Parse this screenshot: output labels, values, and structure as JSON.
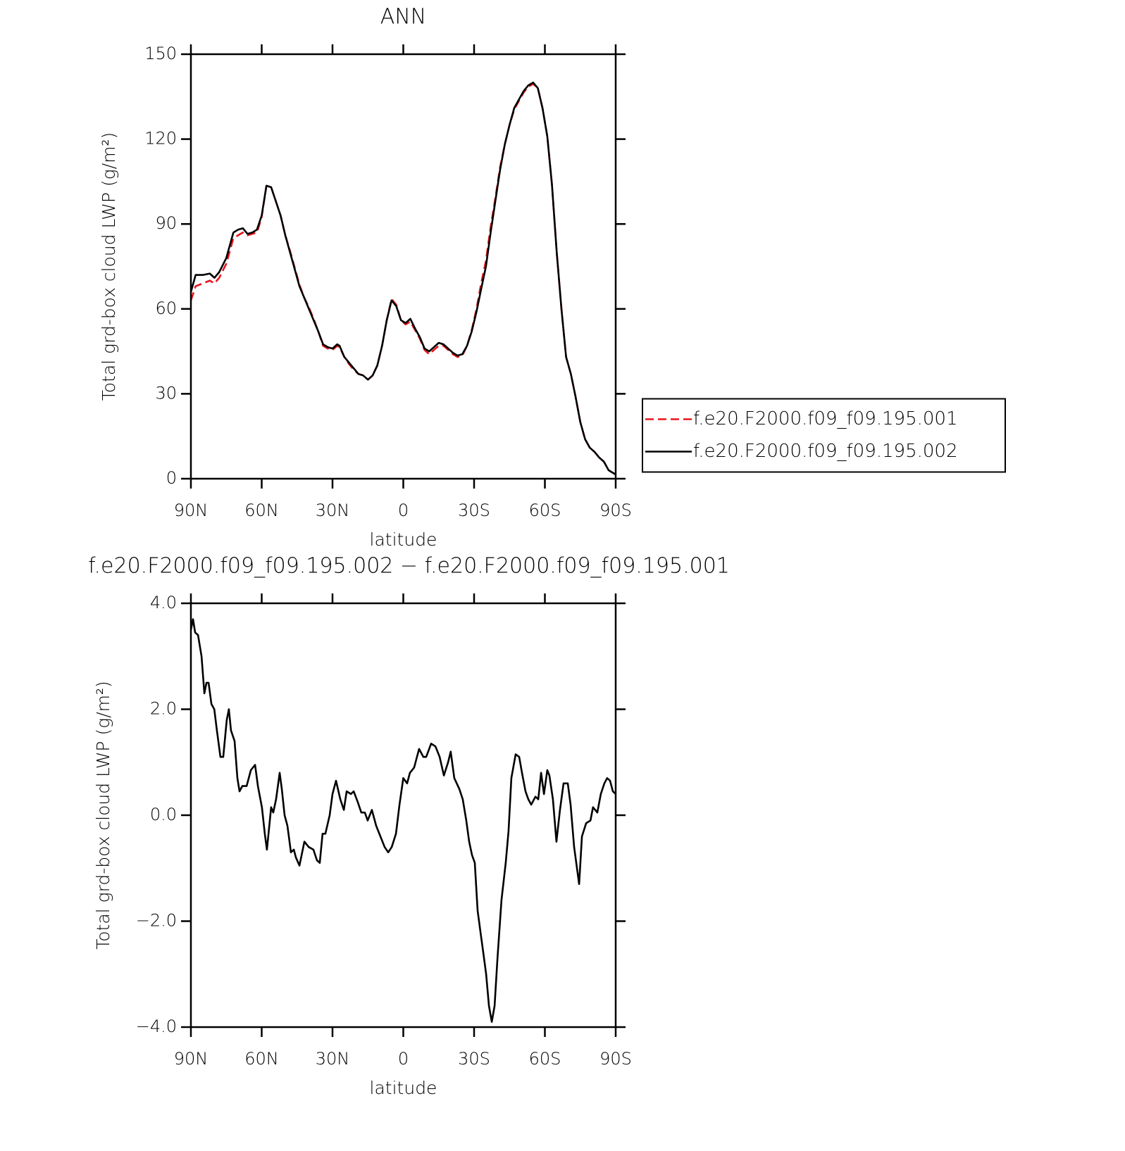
{
  "chart_data": [
    {
      "type": "line",
      "title": "ANN",
      "xlabel": "latitude",
      "ylabel": "Total grd-box cloud LWP (g/m²)",
      "xlim": [
        90,
        -90
      ],
      "ylim": [
        0,
        150
      ],
      "xticks": [
        {
          "value": 90,
          "label": "90N"
        },
        {
          "value": 60,
          "label": "60N"
        },
        {
          "value": 30,
          "label": "30N"
        },
        0,
        {
          "value": -30,
          "label": "30S"
        },
        {
          "value": -60,
          "label": "60S"
        },
        {
          "value": -90,
          "label": "90S"
        }
      ],
      "yticks": [
        0,
        30,
        60,
        90,
        120,
        150
      ],
      "legend": "right",
      "x": [
        90,
        88,
        85,
        82,
        80,
        78,
        75,
        72,
        70,
        68,
        66,
        64,
        62,
        60,
        58,
        56,
        54,
        52,
        50,
        48,
        46,
        44,
        42,
        40,
        38,
        36,
        34,
        32,
        30,
        28,
        27,
        25,
        23,
        21,
        19,
        17,
        15,
        13,
        11,
        9,
        7,
        5,
        3,
        1,
        -1,
        -3,
        -5,
        -7,
        -9,
        -11,
        -13,
        -15,
        -17,
        -19,
        -21,
        -23,
        -25,
        -27,
        -29,
        -31,
        -33,
        -35,
        -37,
        -39,
        -41,
        -43,
        -45,
        -47,
        -49,
        -51,
        -53,
        -55,
        -57,
        -59,
        -61,
        -63,
        -65,
        -67,
        -69,
        -71,
        -73,
        -75,
        -77,
        -79,
        -81,
        -83,
        -85,
        -87,
        -89,
        -90
      ],
      "series": [
        {
          "name": "f.e20.F2000.f09_f09.195.001",
          "color": "#e8141c",
          "linestyle": "dashed",
          "values": [
            63,
            68,
            69,
            70,
            69,
            71,
            76,
            85,
            86,
            87,
            86,
            86.5,
            87,
            92.5,
            103.5,
            103,
            98,
            93,
            86,
            80.5,
            74.5,
            68.5,
            64,
            60.5,
            56.5,
            52,
            47,
            46,
            45.5,
            47,
            46.5,
            43,
            40.5,
            38.5,
            37,
            36.5,
            35,
            36.5,
            40,
            47,
            56,
            63.5,
            61.5,
            56,
            54.5,
            55.5,
            52.5,
            49.5,
            45.5,
            44,
            45.5,
            47,
            47,
            45.5,
            44,
            43,
            43.5,
            47,
            52.5,
            60,
            69,
            77,
            89,
            99,
            110,
            118,
            125,
            130.5,
            133.5,
            136.5,
            138.5,
            139.5,
            138,
            131,
            121,
            104,
            80,
            60,
            43,
            37,
            29,
            20,
            14,
            11,
            9.5,
            7.5,
            6,
            3,
            2,
            1.5
          ]
        },
        {
          "name": "f.e20.F2000.f09_f09.195.002",
          "color": "#000000",
          "linestyle": "solid",
          "values": [
            66,
            72,
            72,
            72.5,
            71,
            73,
            78,
            87,
            88,
            88.5,
            86.5,
            87,
            88,
            93,
            103.5,
            103,
            98,
            93,
            86,
            80,
            74,
            68,
            64,
            60,
            56,
            52,
            47.5,
            46.5,
            46,
            47.5,
            47,
            43,
            41,
            39,
            37,
            36.5,
            35,
            36.5,
            40,
            47,
            56,
            63,
            61,
            56,
            55,
            56.5,
            53,
            50,
            46,
            45,
            46.5,
            48,
            47.5,
            46,
            44.5,
            43.5,
            44,
            47,
            52,
            59,
            67,
            75,
            87,
            98,
            109,
            118,
            125,
            131,
            134,
            137,
            139,
            140,
            138,
            131,
            121,
            104,
            80,
            60,
            43,
            37,
            29,
            20,
            14,
            11,
            9.5,
            7.5,
            6,
            3,
            2,
            1.5
          ]
        }
      ]
    },
    {
      "type": "line",
      "title": "f.e20.F2000.f09_f09.195.002 − f.e20.F2000.f09_f09.195.001",
      "xlabel": "latitude",
      "ylabel": "Total grd-box cloud LWP (g/m²)",
      "xlim": [
        90,
        -90
      ],
      "ylim": [
        -4,
        4
      ],
      "xticks": [
        {
          "value": 90,
          "label": "90N"
        },
        {
          "value": 60,
          "label": "60N"
        },
        {
          "value": 30,
          "label": "30N"
        },
        0,
        {
          "value": -30,
          "label": "30S"
        },
        {
          "value": -60,
          "label": "60S"
        },
        {
          "value": -90,
          "label": "90S"
        }
      ],
      "yticks": [
        {
          "value": -4,
          "label": "−4.0"
        },
        {
          "value": -2,
          "label": "−2.0"
        },
        {
          "value": 0,
          "label": "0.0"
        },
        {
          "value": 2,
          "label": "2.0"
        },
        {
          "value": 4,
          "label": "4.0"
        }
      ],
      "color": "#000000",
      "x": [
        90,
        89.1,
        88.2,
        87,
        85.5,
        84.3,
        83.4,
        82.5,
        81.3,
        80.1,
        79,
        77.5,
        76.3,
        74.8,
        73.9,
        73,
        71.5,
        70.3,
        69.4,
        68.2,
        66.4,
        64.6,
        62.8,
        61.6,
        59.9,
        58.7,
        57.8,
        56,
        55.1,
        53.9,
        52.4,
        51.5,
        50.3,
        49.1,
        47.6,
        46.4,
        45.5,
        44,
        41.9,
        40.1,
        38.1,
        36.6,
        35.4,
        34.2,
        33,
        31.2,
        30,
        28.5,
        26.7,
        25.2,
        24,
        22.2,
        21,
        19.3,
        17.8,
        16.3,
        15.1,
        13.3,
        11.5,
        9.7,
        7.9,
        6.4,
        4.9,
        3.1,
        1.6,
        0,
        -1.6,
        -2.8,
        -4.6,
        -6.7,
        -8.5,
        -9.7,
        -11.8,
        -13.6,
        -15.4,
        -17.2,
        -19,
        -20.1,
        -21.6,
        -23.7,
        -25.2,
        -26.7,
        -27.9,
        -29.1,
        -30.3,
        -31.5,
        -32.7,
        -33.9,
        -35.1,
        -36.3,
        -37.5,
        -38.7,
        -39.9,
        -41.6,
        -43.4,
        -44.6,
        -45.8,
        -47.6,
        -49.1,
        -50.3,
        -51.8,
        -53,
        -54.2,
        -56,
        -57.2,
        -58.4,
        -59.6,
        -61,
        -61.9,
        -63.4,
        -64.9,
        -66.4,
        -67.9,
        -69.7,
        -70.9,
        -72.4,
        -74.5,
        -75.7,
        -77.5,
        -79.3,
        -80.4,
        -82.2,
        -83.7,
        -85.2,
        -86.4,
        -87.6,
        -88.8,
        -90
      ],
      "values": [
        3.5,
        3.7,
        3.45,
        3.4,
        3.0,
        2.3,
        2.5,
        2.5,
        2.1,
        2.0,
        1.6,
        1.1,
        1.1,
        1.8,
        2.0,
        1.6,
        1.4,
        0.7,
        0.45,
        0.55,
        0.55,
        0.85,
        0.95,
        0.55,
        0.15,
        -0.35,
        -0.65,
        0.15,
        0.05,
        0.3,
        0.8,
        0.5,
        0.0,
        -0.2,
        -0.7,
        -0.65,
        -0.8,
        -0.95,
        -0.5,
        -0.6,
        -0.65,
        -0.85,
        -0.9,
        -0.35,
        -0.35,
        0.0,
        0.4,
        0.65,
        0.3,
        0.1,
        0.45,
        0.4,
        0.45,
        0.25,
        0.05,
        0.05,
        -0.1,
        0.1,
        -0.2,
        -0.4,
        -0.6,
        -0.7,
        -0.6,
        -0.35,
        0.2,
        0.7,
        0.6,
        0.8,
        0.9,
        1.25,
        1.1,
        1.1,
        1.35,
        1.3,
        1.1,
        0.75,
        1.0,
        1.2,
        0.7,
        0.5,
        0.3,
        -0.1,
        -0.5,
        -0.75,
        -0.9,
        -1.8,
        -2.2,
        -2.6,
        -3.0,
        -3.6,
        -3.9,
        -3.6,
        -2.7,
        -1.6,
        -0.9,
        -0.3,
        0.7,
        1.15,
        1.1,
        0.8,
        0.45,
        0.3,
        0.2,
        0.35,
        0.3,
        0.8,
        0.4,
        0.85,
        0.75,
        0.3,
        -0.5,
        0.1,
        0.6,
        0.6,
        0.2,
        -0.6,
        -1.3,
        -0.4,
        -0.15,
        -0.1,
        0.15,
        0.05,
        0.4,
        0.6,
        0.7,
        0.65,
        0.45,
        0.4
      ]
    }
  ]
}
